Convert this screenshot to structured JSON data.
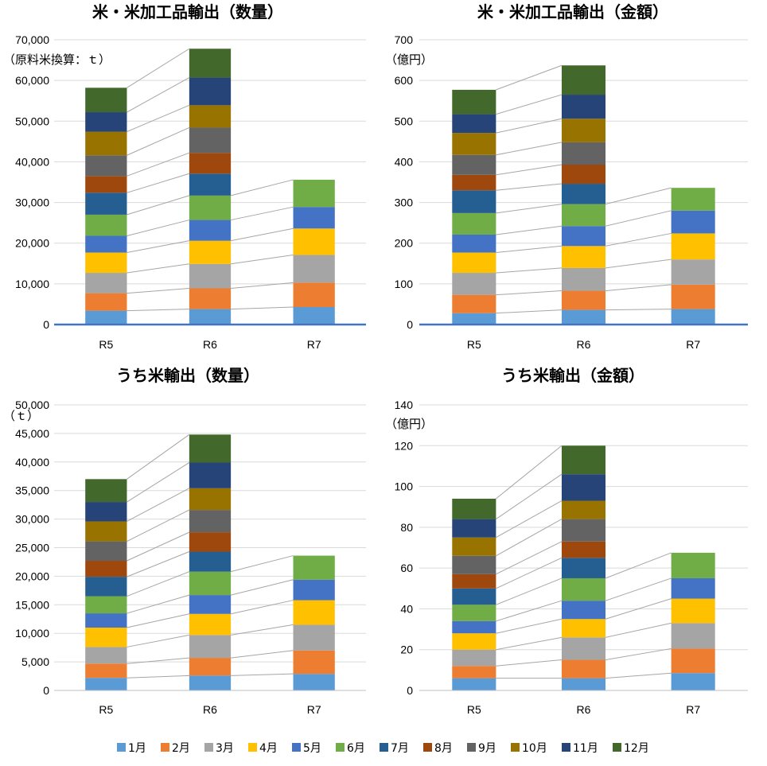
{
  "months": [
    "1月",
    "2月",
    "3月",
    "4月",
    "5月",
    "6月",
    "7月",
    "8月",
    "9月",
    "10月",
    "11月",
    "12月"
  ],
  "colors": [
    "#5b9bd5",
    "#ed7d31",
    "#a5a5a5",
    "#ffc000",
    "#4472c4",
    "#70ad47",
    "#255e91",
    "#9e480e",
    "#636363",
    "#997300",
    "#264478",
    "#43682b"
  ],
  "chart_data": [
    {
      "type": "bar",
      "title": "米・米加工品輸出（数量）",
      "unit_label": "（原料米換算：ｔ）",
      "categories": [
        "R5",
        "R6",
        "R7"
      ],
      "ylim": [
        0,
        70000
      ],
      "yticks": [
        "0",
        "10,000",
        "20,000",
        "30,000",
        "40,000",
        "50,000",
        "60,000",
        "70,000"
      ],
      "ytick_values": [
        0,
        10000,
        20000,
        30000,
        40000,
        50000,
        60000,
        70000
      ],
      "series": [
        {
          "name": "1月",
          "values": [
            3400,
            3800,
            4300
          ]
        },
        {
          "name": "2月",
          "values": [
            4300,
            5100,
            6000
          ]
        },
        {
          "name": "3月",
          "values": [
            5000,
            6000,
            6800
          ]
        },
        {
          "name": "4月",
          "values": [
            5000,
            5700,
            6500
          ]
        },
        {
          "name": "5月",
          "values": [
            4100,
            5100,
            5300
          ]
        },
        {
          "name": "6月",
          "values": [
            5200,
            6000,
            6700
          ]
        },
        {
          "name": "7月",
          "values": [
            5400,
            5400,
            null
          ]
        },
        {
          "name": "8月",
          "values": [
            4100,
            5100,
            null
          ]
        },
        {
          "name": "9月",
          "values": [
            5100,
            6200,
            null
          ]
        },
        {
          "name": "10月",
          "values": [
            5800,
            5500,
            null
          ]
        },
        {
          "name": "11月",
          "values": [
            4800,
            6800,
            null
          ]
        },
        {
          "name": "12月",
          "values": [
            6000,
            7100,
            null
          ]
        }
      ]
    },
    {
      "type": "bar",
      "title": "米・米加工品輸出（金額）",
      "unit_label": "（億円）",
      "categories": [
        "R5",
        "R6",
        "R7"
      ],
      "ylim": [
        0,
        700
      ],
      "yticks": [
        "0",
        "100",
        "200",
        "300",
        "400",
        "500",
        "600",
        "700"
      ],
      "ytick_values": [
        0,
        100,
        200,
        300,
        400,
        500,
        600,
        700
      ],
      "series": [
        {
          "name": "1月",
          "values": [
            28,
            36,
            38
          ]
        },
        {
          "name": "2月",
          "values": [
            45,
            47,
            60
          ]
        },
        {
          "name": "3月",
          "values": [
            54,
            56,
            62
          ]
        },
        {
          "name": "4月",
          "values": [
            50,
            54,
            64
          ]
        },
        {
          "name": "5月",
          "values": [
            44,
            49,
            56
          ]
        },
        {
          "name": "6月",
          "values": [
            53,
            54,
            56
          ]
        },
        {
          "name": "7月",
          "values": [
            56,
            50,
            null
          ]
        },
        {
          "name": "8月",
          "values": [
            38,
            47,
            null
          ]
        },
        {
          "name": "9月",
          "values": [
            49,
            55,
            null
          ]
        },
        {
          "name": "10月",
          "values": [
            54,
            58,
            null
          ]
        },
        {
          "name": "11月",
          "values": [
            46,
            59,
            null
          ]
        },
        {
          "name": "12月",
          "values": [
            60,
            72,
            null
          ]
        }
      ]
    },
    {
      "type": "bar",
      "title": "うち米輸出（数量）",
      "unit_label": "（ｔ）",
      "categories": [
        "R5",
        "R6",
        "R7"
      ],
      "ylim": [
        0,
        50000
      ],
      "yticks": [
        "0",
        "5,000",
        "10,000",
        "15,000",
        "20,000",
        "25,000",
        "30,000",
        "35,000",
        "40,000",
        "45,000",
        "50,000"
      ],
      "ytick_values": [
        0,
        5000,
        10000,
        15000,
        20000,
        25000,
        30000,
        35000,
        40000,
        45000,
        50000
      ],
      "series": [
        {
          "name": "1月",
          "values": [
            2200,
            2600,
            2900
          ]
        },
        {
          "name": "2月",
          "values": [
            2500,
            3100,
            4100
          ]
        },
        {
          "name": "3月",
          "values": [
            2900,
            4000,
            4500
          ]
        },
        {
          "name": "4月",
          "values": [
            3400,
            3700,
            4300
          ]
        },
        {
          "name": "5月",
          "values": [
            2500,
            3300,
            3600
          ]
        },
        {
          "name": "6月",
          "values": [
            3000,
            4100,
            4200
          ]
        },
        {
          "name": "7月",
          "values": [
            3400,
            3500,
            null
          ]
        },
        {
          "name": "8月",
          "values": [
            2800,
            3400,
            null
          ]
        },
        {
          "name": "9月",
          "values": [
            3400,
            3900,
            null
          ]
        },
        {
          "name": "10月",
          "values": [
            3500,
            3800,
            null
          ]
        },
        {
          "name": "11月",
          "values": [
            3400,
            4500,
            null
          ]
        },
        {
          "name": "12月",
          "values": [
            4000,
            4900,
            null
          ]
        }
      ]
    },
    {
      "type": "bar",
      "title": "うち米輸出（金額）",
      "unit_label": "（億円）",
      "categories": [
        "R5",
        "R6",
        "R7"
      ],
      "ylim": [
        0,
        140
      ],
      "yticks": [
        "0",
        "20",
        "40",
        "60",
        "80",
        "100",
        "120",
        "140"
      ],
      "ytick_values": [
        0,
        20,
        40,
        60,
        80,
        100,
        120,
        140
      ],
      "series": [
        {
          "name": "1月",
          "values": [
            6,
            6,
            8.5
          ]
        },
        {
          "name": "2月",
          "values": [
            6,
            9,
            12
          ]
        },
        {
          "name": "3月",
          "values": [
            8,
            11,
            12.5
          ]
        },
        {
          "name": "4月",
          "values": [
            8,
            9,
            12
          ]
        },
        {
          "name": "5月",
          "values": [
            6,
            9,
            10
          ]
        },
        {
          "name": "6月",
          "values": [
            8,
            11,
            12.5
          ]
        },
        {
          "name": "7月",
          "values": [
            8,
            10,
            null
          ]
        },
        {
          "name": "8月",
          "values": [
            7,
            8,
            null
          ]
        },
        {
          "name": "9月",
          "values": [
            9,
            11,
            null
          ]
        },
        {
          "name": "10月",
          "values": [
            9,
            9,
            null
          ]
        },
        {
          "name": "11月",
          "values": [
            9,
            13,
            null
          ]
        },
        {
          "name": "12月",
          "values": [
            10,
            14,
            null
          ]
        }
      ]
    }
  ]
}
